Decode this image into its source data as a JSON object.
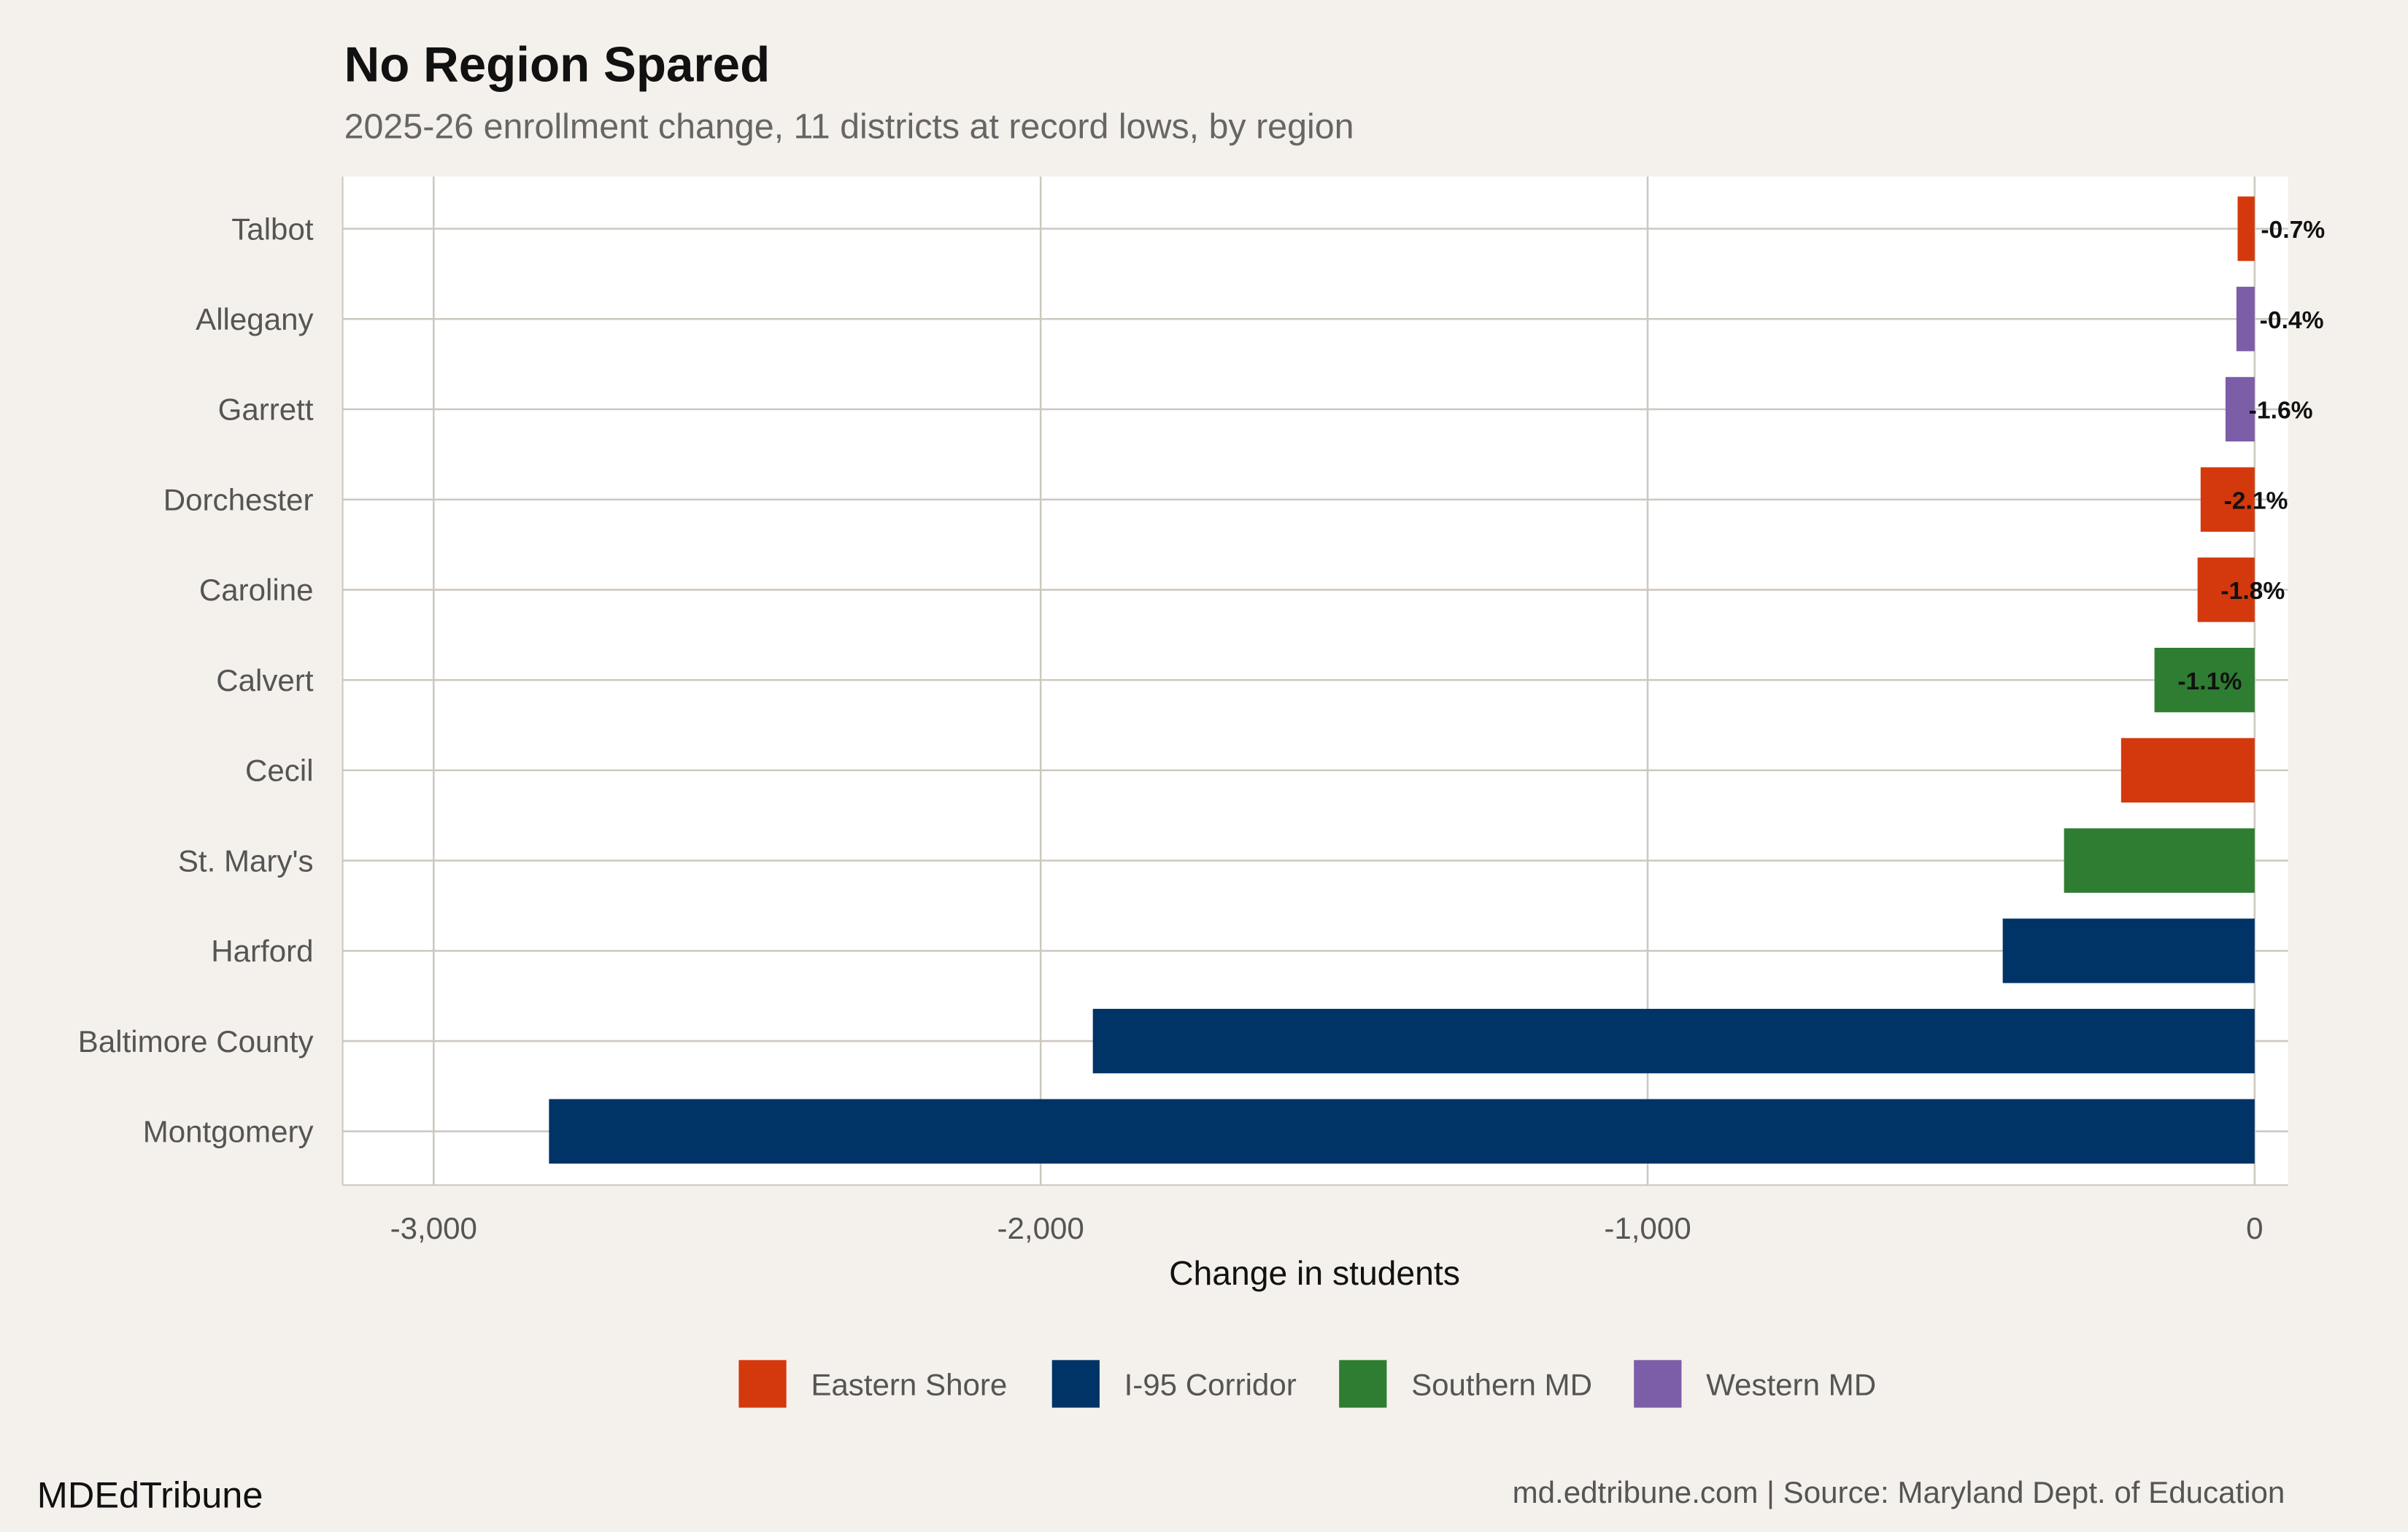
{
  "brand": "MDEdTribune",
  "source": "md.edtribune.com | Source: Maryland Dept. of Education",
  "colors": {
    "background": "#f4f1ec",
    "panel": "#ffffff",
    "grid": "#cdc8bf",
    "Eastern Shore": "#d4380d",
    "I-95 Corridor": "#003366",
    "Southern MD": "#2e7d32",
    "Western MD": "#7b5ea7"
  },
  "chart_data": {
    "type": "bar",
    "orientation": "horizontal",
    "title": "No Region Spared",
    "subtitle": "2025-26 enrollment change, 11 districts at record lows, by region",
    "xlabel": "Change in students",
    "ylabel": "",
    "xlim": [
      -3150,
      55
    ],
    "xticks": [
      -3000,
      -2000,
      -1000,
      0
    ],
    "xtick_labels": [
      "-3,000",
      "-2,000",
      "-1,000",
      "0"
    ],
    "grid": true,
    "legend_position": "bottom",
    "legend": [
      "Eastern Shore",
      "I-95 Corridor",
      "Southern MD",
      "Western MD"
    ],
    "categories": [
      "Talbot",
      "Allegany",
      "Garrett",
      "Dorchester",
      "Caroline",
      "Calvert",
      "Cecil",
      "St. Mary's",
      "Harford",
      "Baltimore County",
      "Montgomery"
    ],
    "regions": [
      "Eastern Shore",
      "Western MD",
      "Western MD",
      "Eastern Shore",
      "Eastern Shore",
      "Southern MD",
      "Eastern Shore",
      "Southern MD",
      "I-95 Corridor",
      "I-95 Corridor",
      "I-95 Corridor"
    ],
    "values": [
      -28,
      -30,
      -48,
      -89,
      -94,
      -165,
      -220,
      -314,
      -415,
      -1914,
      -2810
    ],
    "labels": [
      "-0.7%",
      "-0.4%",
      "-1.6%",
      "-2.1%",
      "-1.8%",
      "-1.1%",
      "",
      "",
      "",
      "",
      ""
    ]
  }
}
